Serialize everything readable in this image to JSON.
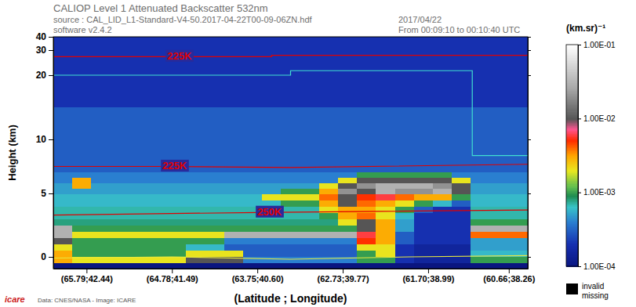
{
  "chart_data": {
    "type": "heatmap",
    "title": "CALIOP Level 1 Attenuated Backscatter 532nm",
    "annotations": [
      "source : CAL_LID_L1-Standard-V4-50.2017-04-22T00-09-06ZN.hdf",
      "software v2.4.2",
      "2017/04/22",
      "From 00:09:10 to 00:10:40 UTC",
      "Data: CNES/NASA - Image: ICARE",
      "icare"
    ],
    "x_label": "(Latitude ; Longitude)",
    "y_label": "Height (km)",
    "xlim": [
      0,
      100
    ],
    "xticks": [
      {
        "value": 7,
        "label": "(65.79;42.44)"
      },
      {
        "value": 25,
        "label": "(64.78;41.49)"
      },
      {
        "value": 43,
        "label": "(63.75;40.60)"
      },
      {
        "value": 61,
        "label": "(62.73;39.77)"
      },
      {
        "value": 79,
        "label": "(61.70;38.99)"
      },
      {
        "value": 96,
        "label": "(60.66;38.26)"
      }
    ],
    "ylim": [
      -1,
      40
    ],
    "yticks": [
      0,
      5,
      10,
      20,
      30,
      40
    ],
    "x_bins": [
      0,
      4,
      8,
      12,
      16,
      20,
      24,
      28,
      32,
      36,
      40,
      44,
      48,
      52,
      56,
      60,
      64,
      68,
      72,
      76,
      80,
      84,
      88,
      92,
      96,
      100
    ],
    "y_bins": [
      -1,
      -0.5,
      0,
      0.5,
      1,
      1.5,
      2,
      2.5,
      3,
      3.5,
      4,
      4.5,
      5,
      5.5,
      6,
      6.5,
      7,
      8,
      10,
      15,
      20,
      30,
      40
    ],
    "cells": [
      [
        0.0001,
        0.0001,
        0.0001,
        0.0001,
        0.0001,
        0.0001,
        0.0001,
        0.0001,
        0.0001,
        0.0001,
        0.0001,
        0.0001,
        0.0001,
        0.0001,
        0.0001,
        0.0001,
        0.0001,
        0.0001,
        0.0001,
        0.0001,
        0.0001,
        0.0001,
        0.0001,
        0.0001,
        0.0001
      ],
      [
        0.003,
        0.002,
        0.002,
        0.002,
        0.002,
        0.002,
        0.002,
        0.01,
        0.01,
        0.01,
        0.0004,
        0.0004,
        0.0004,
        0.0004,
        0.0004,
        0.0004,
        0.001,
        0.001,
        0.0002,
        0.00015,
        0.00015,
        0.00015,
        0.001,
        0.001,
        0.001
      ],
      [
        0.003,
        0.001,
        0.001,
        0.001,
        0.001,
        0.001,
        0.001,
        0.002,
        0.002,
        0.002,
        0.0003,
        0.0003,
        0.0003,
        0.0003,
        0.0003,
        0.0003,
        0.001,
        0.002,
        0.0002,
        0.00015,
        0.00015,
        0.00015,
        0.0006,
        0.0006,
        0.0006
      ],
      [
        0.002,
        0.001,
        0.001,
        0.001,
        0.001,
        0.001,
        0.001,
        0.0006,
        0.0006,
        0.0003,
        0.0003,
        0.0003,
        0.0003,
        0.0003,
        0.0003,
        0.0003,
        0.002,
        0.002,
        0.0002,
        0.00015,
        0.00015,
        0.00015,
        0.0005,
        0.0005,
        0.0005
      ],
      [
        0.01,
        0.001,
        0.001,
        0.001,
        0.001,
        0.001,
        0.001,
        0.001,
        0.001,
        0.0004,
        0.0004,
        0.0004,
        0.0004,
        0.0004,
        0.0004,
        0.0004,
        0.005,
        0.003,
        0.0003,
        0.0002,
        0.0002,
        0.0002,
        0.0005,
        0.0005,
        0.0005
      ],
      [
        0.03,
        0.002,
        0.002,
        0.002,
        0.002,
        0.002,
        0.002,
        0.002,
        0.002,
        0.03,
        0.03,
        0.03,
        0.03,
        0.03,
        0.03,
        0.03,
        0.006,
        0.003,
        0.0003,
        0.0002,
        0.0002,
        0.0002,
        0.004,
        0.004,
        0.004
      ],
      [
        0.03,
        0.001,
        0.001,
        0.001,
        0.001,
        0.001,
        0.001,
        0.001,
        0.001,
        0.001,
        0.001,
        0.001,
        0.001,
        0.001,
        0.001,
        0.001,
        0.01,
        0.003,
        0.0005,
        0.0002,
        0.0002,
        0.0002,
        0.03,
        0.03,
        0.03
      ],
      [
        0.0008,
        0.0008,
        0.0008,
        0.0008,
        0.0008,
        0.0008,
        0.0008,
        0.0008,
        0.0008,
        0.0008,
        0.0008,
        0.0008,
        0.0008,
        0.0008,
        0.0008,
        0.002,
        0.01,
        0.003,
        0.0005,
        0.0002,
        0.0002,
        0.0002,
        0.001,
        0.001,
        0.001
      ],
      [
        0.0007,
        0.0007,
        0.0007,
        0.0007,
        0.0007,
        0.0007,
        0.0007,
        0.0007,
        0.0007,
        0.0007,
        0.0007,
        0.0007,
        0.0007,
        0.0007,
        0.001,
        0.003,
        0.004,
        0.002,
        0.0006,
        0.0002,
        0.0002,
        0.0002,
        0.0007,
        0.0007,
        0.0007
      ],
      [
        0.0007,
        0.0007,
        0.0007,
        0.0007,
        0.0007,
        0.0007,
        0.0007,
        0.0007,
        0.0007,
        0.0007,
        0.0007,
        0.0007,
        0.0007,
        0.0007,
        0.002,
        0.003,
        0.003,
        0.002,
        0.001,
        0.0003,
        0.0002,
        0.0002,
        0.0007,
        0.0007,
        0.0007
      ],
      [
        0.0006,
        0.0006,
        0.0006,
        0.0006,
        0.0006,
        0.0006,
        0.0006,
        0.0006,
        0.0006,
        0.0006,
        0.0006,
        0.0006,
        0.001,
        0.001,
        0.003,
        0.01,
        0.004,
        0.003,
        0.002,
        0.001,
        0.0006,
        0.0003,
        0.0006,
        0.0006,
        0.0006
      ],
      [
        0.0006,
        0.0006,
        0.0006,
        0.0006,
        0.0006,
        0.0006,
        0.0006,
        0.0006,
        0.0006,
        0.0006,
        0.0006,
        0.002,
        0.002,
        0.002,
        0.004,
        0.01,
        0.005,
        0.006,
        0.004,
        0.003,
        0.003,
        0.001,
        0.0006,
        0.0006,
        0.0006
      ],
      [
        0.0005,
        0.0005,
        0.0005,
        0.0005,
        0.0005,
        0.0005,
        0.0005,
        0.0005,
        0.0005,
        0.0005,
        0.0005,
        0.0005,
        0.001,
        0.001,
        0.003,
        0.02,
        0.01,
        0.03,
        0.02,
        0.02,
        0.03,
        0.01,
        0.0005,
        0.0005,
        0.0005
      ],
      [
        0.0005,
        0.003,
        0.0005,
        0.0005,
        0.0005,
        0.0005,
        0.0005,
        0.0005,
        0.0005,
        0.0005,
        0.0005,
        0.0005,
        0.0005,
        0.0005,
        0.002,
        0.01,
        0.02,
        0.03,
        0.03,
        0.03,
        0.02,
        0.01,
        0.0005,
        0.0005,
        0.0005
      ],
      [
        0.0004,
        0.003,
        0.0004,
        0.0004,
        0.0004,
        0.0004,
        0.0004,
        0.0004,
        0.0004,
        0.0004,
        0.0004,
        0.0004,
        0.0004,
        0.0004,
        0.0004,
        0.002,
        0.01,
        0.01,
        0.01,
        0.01,
        0.01,
        0.002,
        0.0004,
        0.0004,
        0.0004
      ],
      [
        0.0004,
        0.0004,
        0.0004,
        0.0004,
        0.0004,
        0.0004,
        0.0004,
        0.0004,
        0.0004,
        0.0004,
        0.0004,
        0.0004,
        0.0004,
        0.0004,
        0.0004,
        0.0004,
        0.001,
        0.001,
        0.001,
        0.001,
        0.001,
        0.0004,
        0.0004,
        0.0004,
        0.0004
      ],
      [
        0.0003,
        0.0003,
        0.0003,
        0.0003,
        0.0003,
        0.0003,
        0.0003,
        0.0003,
        0.0003,
        0.0003,
        0.0003,
        0.0003,
        0.0003,
        0.0003,
        0.0003,
        0.0003,
        0.0003,
        0.0003,
        0.0003,
        0.0003,
        0.0003,
        0.0003,
        0.0003,
        0.0003,
        0.0003
      ],
      [
        0.0003,
        0.0003,
        0.0003,
        0.0003,
        0.0003,
        0.0003,
        0.0003,
        0.0003,
        0.0003,
        0.0003,
        0.0003,
        0.0003,
        0.0003,
        0.0003,
        0.0003,
        0.0003,
        0.0003,
        0.0003,
        0.0003,
        0.0003,
        0.0003,
        0.0003,
        0.0003,
        0.0003,
        0.0003
      ],
      [
        0.0003,
        0.0003,
        0.0003,
        0.0003,
        0.0003,
        0.0003,
        0.0003,
        0.0003,
        0.0003,
        0.0003,
        0.0003,
        0.0003,
        0.0003,
        0.0003,
        0.0003,
        0.0003,
        0.0003,
        0.0003,
        0.0003,
        0.0003,
        0.0003,
        0.0003,
        0.0003,
        0.0003,
        0.0003
      ],
      [
        0.0002,
        0.0002,
        0.0002,
        0.0002,
        0.0002,
        0.0002,
        0.0002,
        0.0002,
        0.0002,
        0.0002,
        0.0002,
        0.0002,
        0.0002,
        0.0002,
        0.0002,
        0.0002,
        0.0002,
        0.0002,
        0.0002,
        0.0002,
        0.0002,
        0.0002,
        0.0002,
        0.0002,
        0.0002
      ],
      [
        0.0002,
        0.0002,
        0.0002,
        0.0002,
        0.0002,
        0.0002,
        0.0002,
        0.0002,
        0.0002,
        0.0002,
        0.0002,
        0.0002,
        0.0002,
        0.0002,
        0.0002,
        0.0002,
        0.0002,
        0.0002,
        0.0002,
        0.0002,
        0.0002,
        0.0002,
        0.0002,
        0.0002,
        0.0002
      ],
      [
        0.0002,
        0.0002,
        0.0002,
        0.0002,
        0.0002,
        0.0002,
        0.0002,
        0.0002,
        0.0002,
        0.0002,
        0.0002,
        0.0002,
        0.0002,
        0.0002,
        0.0002,
        0.0002,
        0.0002,
        0.0002,
        0.0002,
        0.0002,
        0.0002,
        0.0002,
        0.0002,
        0.0002,
        0.0002
      ]
    ],
    "colorbar": {
      "label": "(km.sr)⁻¹",
      "range": [
        0.0001,
        0.1
      ],
      "ticks": [
        {
          "value": 0.1,
          "label": "1.00E-01"
        },
        {
          "value": 0.01,
          "label": "1.00E-02"
        },
        {
          "value": 0.001,
          "label": "1.00E-03"
        },
        {
          "value": 0.0001,
          "label": "1.00E-04"
        }
      ]
    },
    "missing_legend": [
      "invalid",
      "missing"
    ],
    "series": [
      {
        "name": "225K",
        "color": "#e00000",
        "x": [
          0,
          24,
          46,
          46,
          100
        ],
        "values": [
          27.4,
          27.4,
          27.4,
          27.9,
          27.9
        ]
      },
      {
        "name": "225K",
        "color": "#e00000",
        "x": [
          0,
          23,
          50,
          100
        ],
        "values": [
          7.5,
          7.5,
          7.4,
          7.7
        ]
      },
      {
        "name": "250K",
        "color": "#e00000",
        "x": [
          0,
          43,
          100
        ],
        "values": [
          3.3,
          3.5,
          3.7
        ]
      },
      {
        "color": "#40e0d0",
        "x": [
          0,
          50,
          50,
          88.3,
          88.3,
          100
        ],
        "values": [
          20,
          20,
          21.8,
          21.8,
          8.5,
          8.5
        ]
      },
      {
        "color": "#e8e840",
        "x": [
          0,
          25,
          50,
          75,
          100
        ],
        "values": [
          -0.1,
          0,
          -0.2,
          0,
          0.1
        ]
      }
    ]
  }
}
